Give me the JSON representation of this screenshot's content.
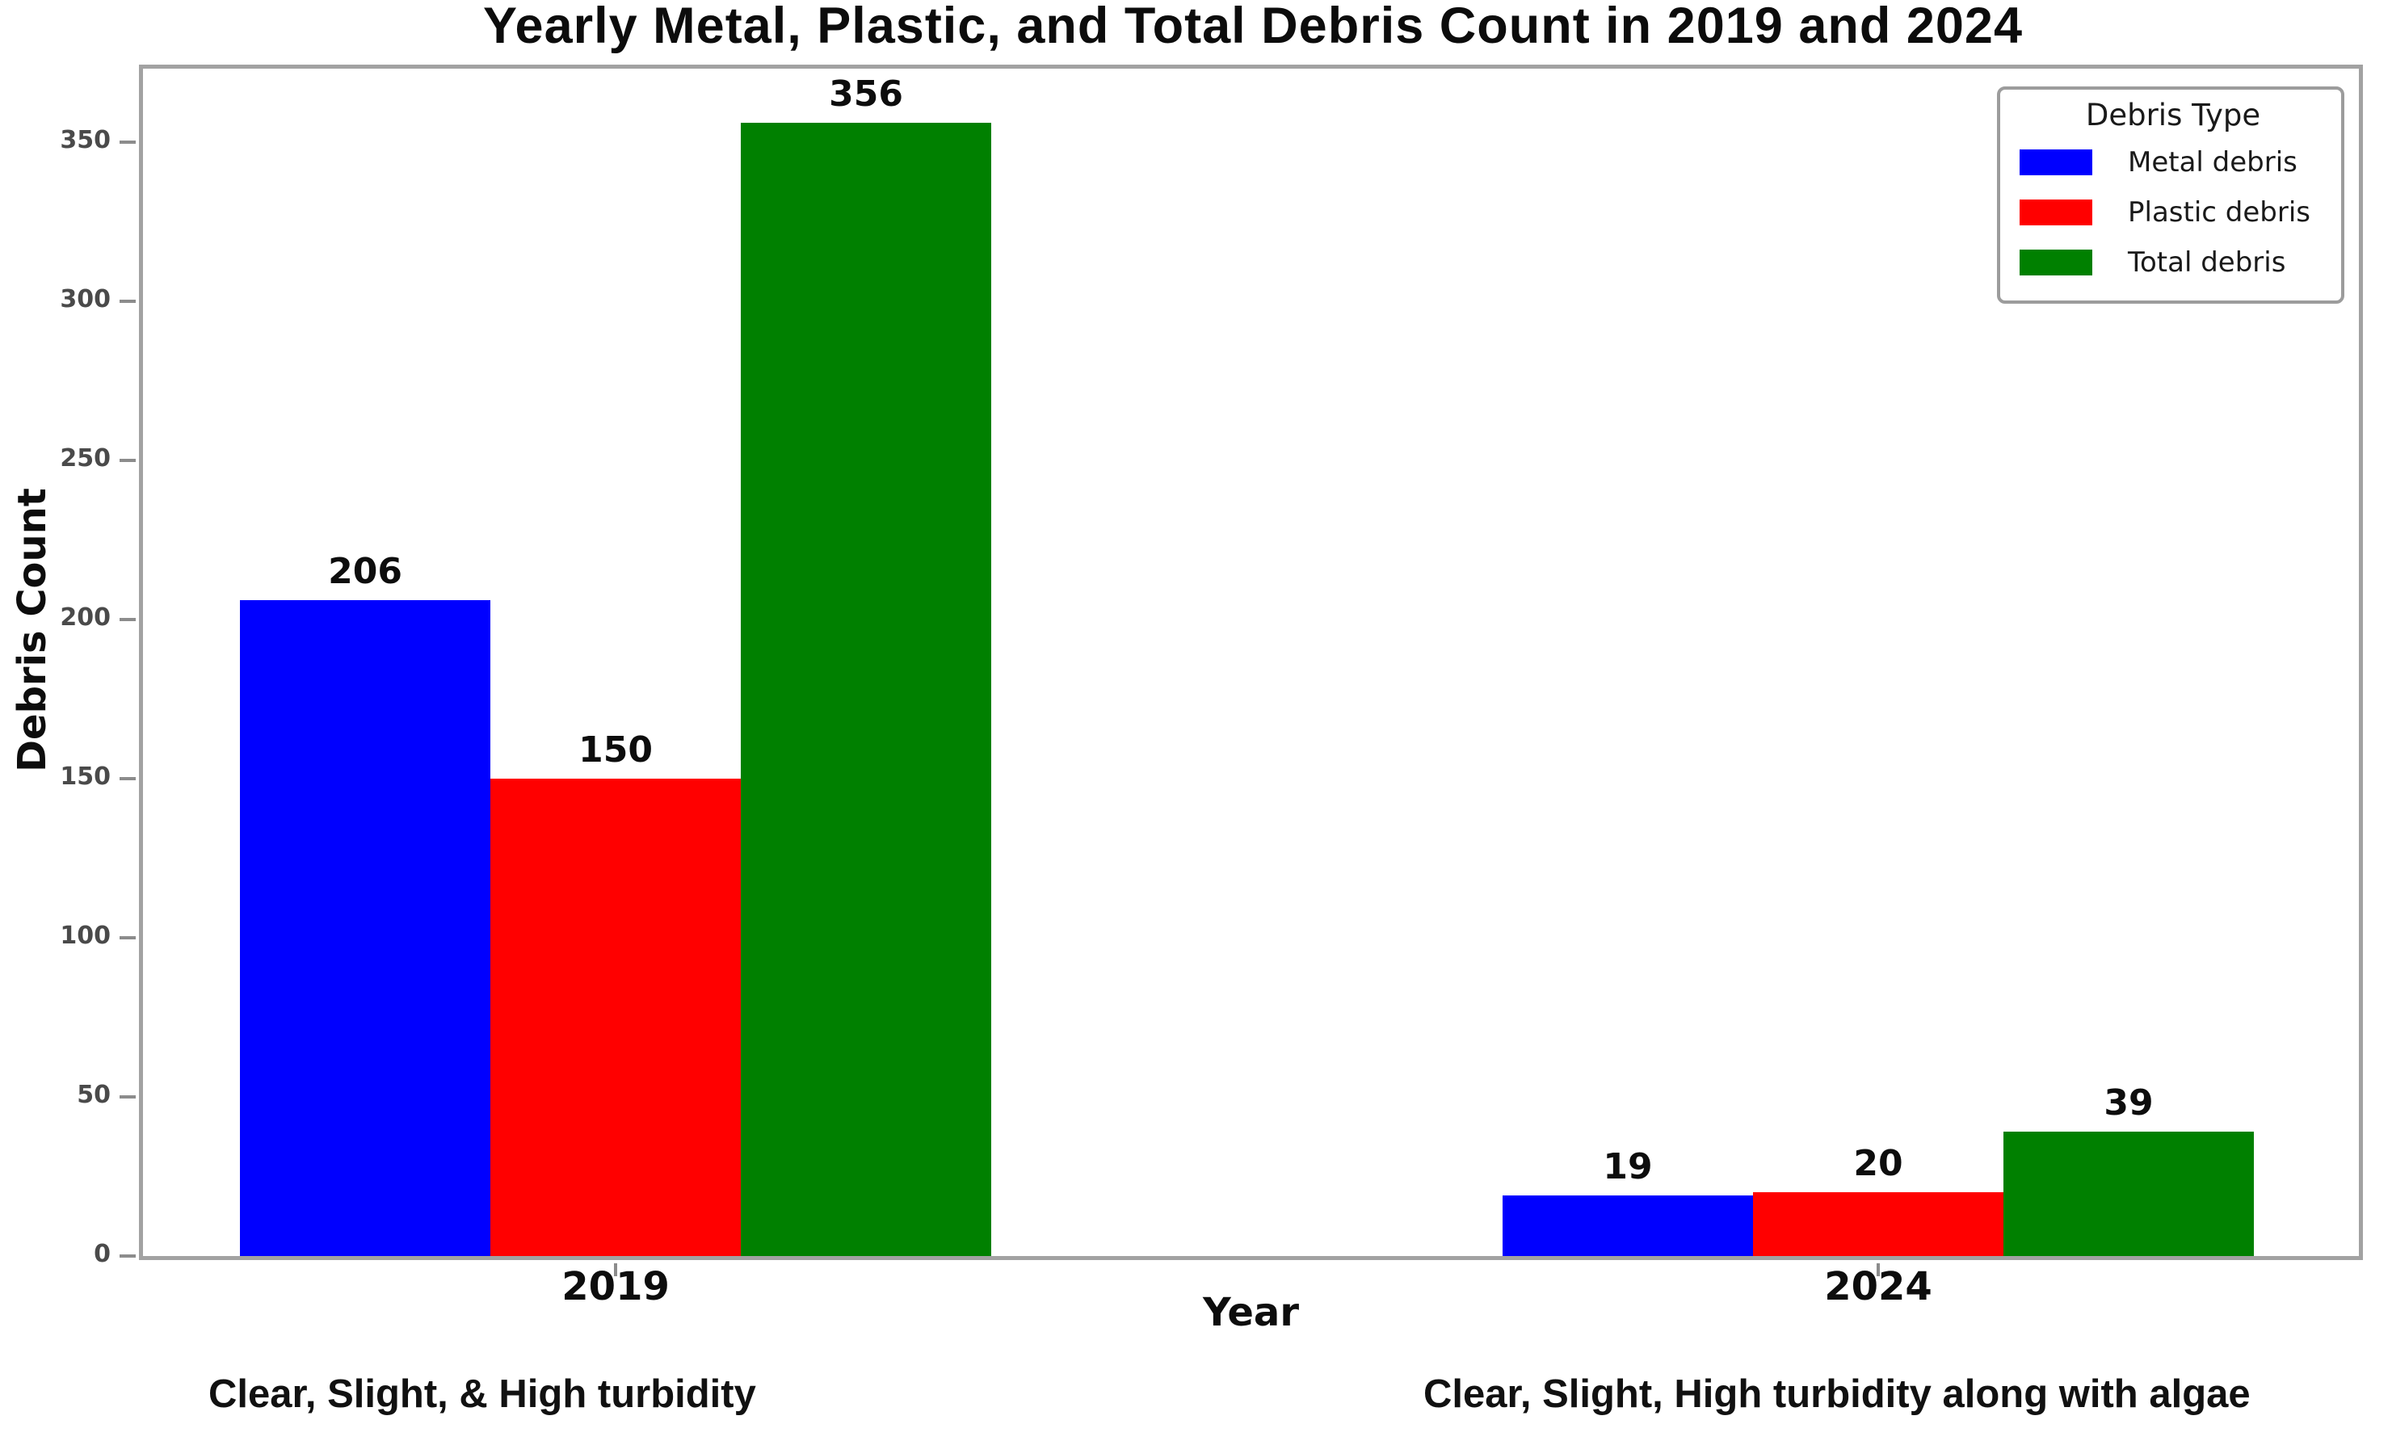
{
  "chart_data": {
    "type": "bar",
    "title": "Yearly Metal, Plastic, and Total Debris Count in 2019 and 2024",
    "xlabel": "Year",
    "ylabel": "Debris Count",
    "categories": [
      "2019",
      "2024"
    ],
    "series": [
      {
        "name": "Metal debris",
        "color": "#0000ff",
        "values": [
          206,
          19
        ]
      },
      {
        "name": "Plastic debris",
        "color": "#ff0000",
        "values": [
          150,
          20
        ]
      },
      {
        "name": "Total debris",
        "color": "#008000",
        "values": [
          356,
          39
        ]
      }
    ],
    "ylim": [
      0,
      373
    ],
    "yticks": [
      0,
      50,
      100,
      150,
      200,
      250,
      300,
      350
    ],
    "legend": {
      "title": "Debris Type",
      "position": "top-right"
    },
    "grid": false,
    "value_labels_shown": true
  },
  "annotations": [
    {
      "text": "Clear, Slight, & High turbidity",
      "under_category": "2019"
    },
    {
      "text": "Clear, Slight, High turbidity along with algae",
      "under_category": "2024"
    }
  ],
  "colors": {
    "axis_spine": "#a2a2a2",
    "tick_mark": "#8c8c8c",
    "ytick_label": "#4a4a4a",
    "text": "#0d0d0d",
    "background": "#ffffff"
  }
}
